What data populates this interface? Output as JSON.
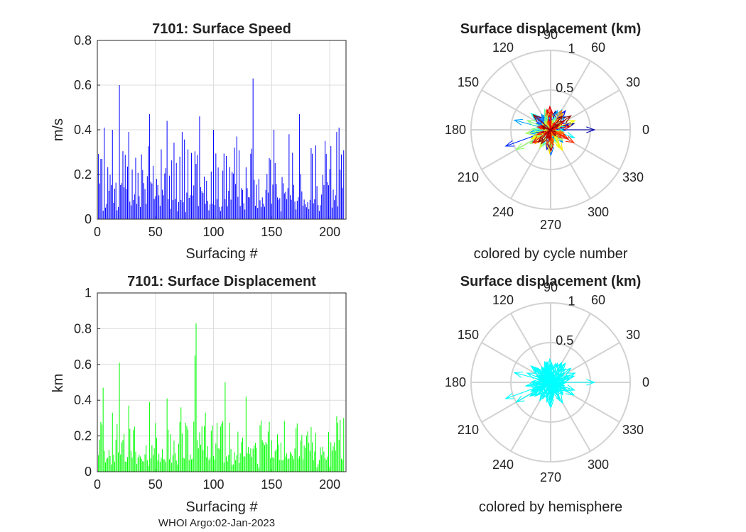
{
  "chart_data": [
    {
      "type": "bar",
      "title": "7101: Surface Speed",
      "xlabel": "Surfacing #",
      "ylabel": "m/s",
      "xlim": [
        0,
        214
      ],
      "ylim": [
        0,
        0.8
      ],
      "xticks": [
        "0",
        "50",
        "100",
        "150",
        "200"
      ],
      "yticks": [
        "0",
        "0.2",
        "0.4",
        "0.6",
        "0.8"
      ],
      "color": "#0000ff",
      "n_bars": 212,
      "mean_value": 0.16,
      "peaks": [
        {
          "x": 2,
          "value": 0.16
        },
        {
          "x": 4,
          "value": 0.27
        },
        {
          "x": 6,
          "value": 0.41
        },
        {
          "x": 13,
          "value": 0.4
        },
        {
          "x": 19,
          "value": 0.6
        },
        {
          "x": 27,
          "value": 0.39
        },
        {
          "x": 45,
          "value": 0.47
        },
        {
          "x": 60,
          "value": 0.44
        },
        {
          "x": 73,
          "value": 0.39
        },
        {
          "x": 88,
          "value": 0.46
        },
        {
          "x": 100,
          "value": 0.4
        },
        {
          "x": 120,
          "value": 0.37
        },
        {
          "x": 134,
          "value": 0.63
        },
        {
          "x": 152,
          "value": 0.4
        },
        {
          "x": 165,
          "value": 0.38
        },
        {
          "x": 174,
          "value": 0.47
        },
        {
          "x": 188,
          "value": 0.33
        },
        {
          "x": 196,
          "value": 0.35
        },
        {
          "x": 206,
          "value": 0.39
        },
        {
          "x": 208,
          "value": 0.41
        },
        {
          "x": 210,
          "value": 0.29
        }
      ]
    },
    {
      "type": "bar",
      "title": "Surface displacement (km)",
      "subtitle": "colored by cycle number",
      "polar": true,
      "r_ticks": [
        "0.5",
        "1"
      ],
      "theta_ticks": [
        "0",
        "30",
        "60",
        "90",
        "120",
        "150",
        "180",
        "210",
        "240",
        "270",
        "300",
        "330"
      ],
      "colormap": "jet",
      "color_by": "cycle number"
    },
    {
      "type": "bar",
      "title": "7101: Surface Displacement",
      "xlabel": "Surfacing #",
      "ylabel": "km",
      "xlim": [
        0,
        214
      ],
      "ylim": [
        0,
        1
      ],
      "xticks": [
        "0",
        "50",
        "100",
        "150",
        "200"
      ],
      "yticks": [
        "0",
        "0.2",
        "0.4",
        "0.6",
        "0.8",
        "1"
      ],
      "color": "#00ff00",
      "n_bars": 212,
      "mean_value": 0.14,
      "peaks": [
        {
          "x": 2,
          "value": 0.18
        },
        {
          "x": 5,
          "value": 0.47
        },
        {
          "x": 13,
          "value": 0.33
        },
        {
          "x": 19,
          "value": 0.61
        },
        {
          "x": 27,
          "value": 0.37
        },
        {
          "x": 45,
          "value": 0.39
        },
        {
          "x": 60,
          "value": 0.41
        },
        {
          "x": 72,
          "value": 0.36
        },
        {
          "x": 84,
          "value": 0.65
        },
        {
          "x": 85,
          "value": 0.83
        },
        {
          "x": 93,
          "value": 0.33
        },
        {
          "x": 110,
          "value": 0.5
        },
        {
          "x": 128,
          "value": 0.42
        },
        {
          "x": 140,
          "value": 0.26
        },
        {
          "x": 172,
          "value": 0.27
        },
        {
          "x": 206,
          "value": 0.31
        },
        {
          "x": 209,
          "value": 0.29
        }
      ]
    },
    {
      "type": "bar",
      "title": "Surface displacement (km)",
      "subtitle": "colored by hemisphere",
      "polar": true,
      "r_ticks": [
        "0.5",
        "1"
      ],
      "theta_ticks": [
        "0",
        "30",
        "60",
        "90",
        "120",
        "150",
        "180",
        "210",
        "240",
        "270",
        "300",
        "330"
      ],
      "color": "#00ffff",
      "color_by": "hemisphere"
    }
  ],
  "footer": "WHOI Argo:02-Jan-2023"
}
